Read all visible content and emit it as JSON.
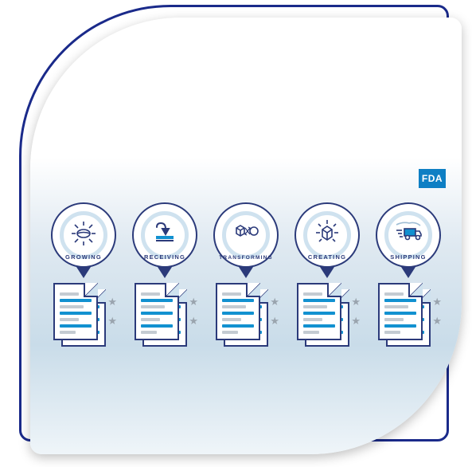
{
  "type": "infographic",
  "panel": {
    "back_border_color": "#1a2a8a",
    "back_radius_tl": 190,
    "front_gradient_stops": [
      "#ffffff",
      "#ffffff",
      "#dfe9f1",
      "#c9dce9",
      "#eff5f9"
    ],
    "front_radius": [
      190,
      14,
      190,
      14
    ],
    "shadow": "0 4px 14px rgba(0,0,0,0.25)"
  },
  "badge": {
    "label": "FDA",
    "bg_color": "#0e7fc4",
    "text_color": "#ffffff"
  },
  "colors": {
    "stroke": "#2b3a7a",
    "accent": "#1291d0",
    "ring": "#cfe2ef",
    "gray_line": "#c4cbd2",
    "star": "#9aa4ae"
  },
  "doc_line_pattern": {
    "colors": [
      "#c4cbd2",
      "#1291d0",
      "#c4cbd2",
      "#1291d0",
      "#c4cbd2",
      "#1291d0",
      "#c4cbd2"
    ],
    "widths": [
      60,
      100,
      75,
      100,
      60,
      100,
      50
    ]
  },
  "stages": [
    {
      "id": "growing",
      "label": "GROWING",
      "icon": "leaf-sun"
    },
    {
      "id": "receiving",
      "label": "RECEIVING",
      "icon": "download-tray"
    },
    {
      "id": "transforming",
      "label": "TRANSFORMING",
      "icon": "cube-swap"
    },
    {
      "id": "creating",
      "label": "CREATING",
      "icon": "cube-sun"
    },
    {
      "id": "shipping",
      "label": "SHIPPING",
      "icon": "truck-fast"
    }
  ]
}
